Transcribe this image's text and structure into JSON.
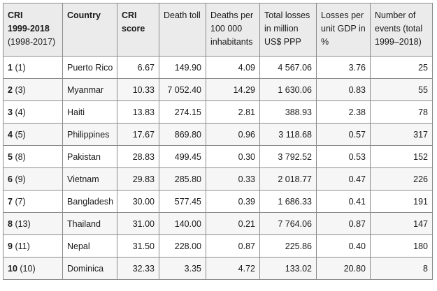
{
  "headers": {
    "rank_line1": "CRI",
    "rank_line2": "1999-2018",
    "rank_line3": "(1998-2017)",
    "country": "Country",
    "score_line1": "CRI",
    "score_line2": "score",
    "death_toll": "Death toll",
    "deaths_per": "Deaths per 100 000 inhabitants",
    "losses": "Total losses in million US$ PPP",
    "losses_gdp": "Losses per unit GDP in %",
    "events": "Number of events (total 1999–2018)"
  },
  "rows": [
    {
      "rank": "1",
      "prev": "(1)",
      "country": "Puerto Rico",
      "score": "6.67",
      "deaths": "149.90",
      "per100k": "4.09",
      "losses": "4 567.06",
      "gdp": "3.76",
      "events": "25"
    },
    {
      "rank": "2",
      "prev": "(3)",
      "country": "Myanmar",
      "score": "10.33",
      "deaths": "7 052.40",
      "per100k": "14.29",
      "losses": "1 630.06",
      "gdp": "0.83",
      "events": "55"
    },
    {
      "rank": "3",
      "prev": "(4)",
      "country": "Haiti",
      "score": "13.83",
      "deaths": "274.15",
      "per100k": "2.81",
      "losses": "388.93",
      "gdp": "2.38",
      "events": "78"
    },
    {
      "rank": "4",
      "prev": "(5)",
      "country": "Philippines",
      "score": "17.67",
      "deaths": "869.80",
      "per100k": "0.96",
      "losses": "3 118.68",
      "gdp": "0.57",
      "events": "317"
    },
    {
      "rank": "5",
      "prev": "(8)",
      "country": "Pakistan",
      "score": "28.83",
      "deaths": "499.45",
      "per100k": "0.30",
      "losses": "3 792.52",
      "gdp": "0.53",
      "events": "152"
    },
    {
      "rank": "6",
      "prev": "(9)",
      "country": "Vietnam",
      "score": "29.83",
      "deaths": "285.80",
      "per100k": "0.33",
      "losses": "2 018.77",
      "gdp": "0.47",
      "events": "226"
    },
    {
      "rank": "7",
      "prev": "(7)",
      "country": "Bangladesh",
      "score": "30.00",
      "deaths": "577.45",
      "per100k": "0.39",
      "losses": "1 686.33",
      "gdp": "0.41",
      "events": "191"
    },
    {
      "rank": "8",
      "prev": "(13)",
      "country": "Thailand",
      "score": "31.00",
      "deaths": "140.00",
      "per100k": "0.21",
      "losses": "7 764.06",
      "gdp": "0.87",
      "events": "147"
    },
    {
      "rank": "9",
      "prev": "(11)",
      "country": "Nepal",
      "score": "31.50",
      "deaths": "228.00",
      "per100k": "0.87",
      "losses": "225.86",
      "gdp": "0.40",
      "events": "180"
    },
    {
      "rank": "10",
      "prev": "(10)",
      "country": "Dominica",
      "score": "32.33",
      "deaths": "3.35",
      "per100k": "4.72",
      "losses": "133.02",
      "gdp": "20.80",
      "events": "8"
    }
  ]
}
